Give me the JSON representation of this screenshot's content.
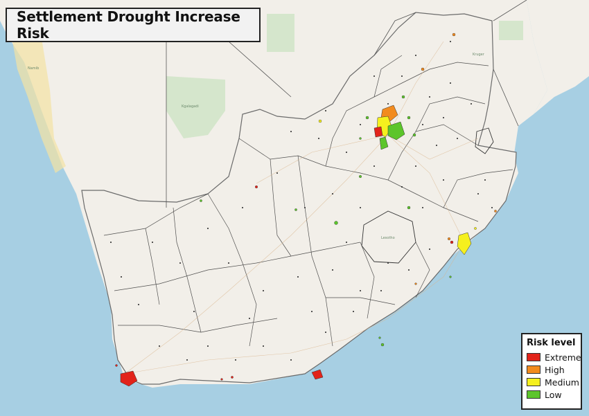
{
  "title": "Settlement Drought Increase Risk",
  "legend": {
    "title": "Risk level",
    "items": [
      {
        "label": "Extreme",
        "color": "#e2231a"
      },
      {
        "label": "High",
        "color": "#f28b1e"
      },
      {
        "label": "Medium",
        "color": "#f5f01e"
      },
      {
        "label": "Low",
        "color": "#5cc52b"
      }
    ]
  },
  "colors": {
    "ocean": "#a7cfe3",
    "land": "#f2efe9",
    "borders": "#2b2b2b",
    "parks": "#d5e6cc",
    "desert": "#f3e3a3"
  }
}
